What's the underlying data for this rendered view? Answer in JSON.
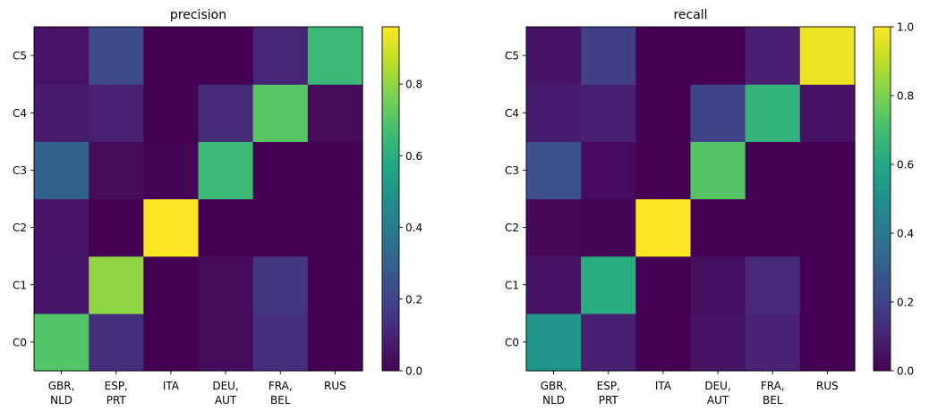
{
  "chart_data": [
    {
      "type": "heatmap",
      "title": "precision",
      "x_categories": [
        "GBR,\nNLD",
        "ESP,\nPRT",
        "ITA",
        "DEU,\nAUT",
        "FRA,\nBEL",
        "RUS"
      ],
      "y_categories": [
        "C0",
        "C1",
        "C2",
        "C3",
        "C4",
        "C5"
      ],
      "values": [
        [
          0.7,
          0.13,
          0.0,
          0.03,
          0.13,
          0.0
        ],
        [
          0.06,
          0.8,
          0.0,
          0.03,
          0.15,
          0.0
        ],
        [
          0.05,
          0.0,
          0.96,
          0.0,
          0.0,
          0.0
        ],
        [
          0.3,
          0.03,
          0.01,
          0.65,
          0.0,
          0.0
        ],
        [
          0.07,
          0.09,
          0.0,
          0.12,
          0.71,
          0.03
        ],
        [
          0.05,
          0.22,
          0.0,
          0.0,
          0.1,
          0.65
        ]
      ],
      "colorbar": {
        "min": 0.0,
        "max": 0.96,
        "ticks": [
          "0.0",
          "0.2",
          "0.4",
          "0.6",
          "0.8"
        ]
      },
      "colormap": "viridis"
    },
    {
      "type": "heatmap",
      "title": "recall",
      "x_categories": [
        "GBR,\nNLD",
        "ESP,\nPRT",
        "ITA",
        "DEU,\nAUT",
        "FRA,\nBEL",
        "RUS"
      ],
      "y_categories": [
        "C0",
        "C1",
        "C2",
        "C3",
        "C4",
        "C5"
      ],
      "values": [
        [
          0.52,
          0.09,
          0.0,
          0.05,
          0.1,
          0.0
        ],
        [
          0.05,
          0.62,
          0.0,
          0.04,
          0.12,
          0.0
        ],
        [
          0.02,
          0.01,
          1.0,
          0.0,
          0.0,
          0.0
        ],
        [
          0.25,
          0.03,
          0.0,
          0.73,
          0.0,
          0.0
        ],
        [
          0.08,
          0.09,
          0.0,
          0.2,
          0.65,
          0.05
        ],
        [
          0.05,
          0.19,
          0.0,
          0.0,
          0.09,
          0.97
        ]
      ],
      "colorbar": {
        "min": 0.0,
        "max": 1.0,
        "ticks": [
          "0.0",
          "0.2",
          "0.4",
          "0.6",
          "0.8",
          "1.0"
        ]
      },
      "colormap": "viridis"
    }
  ]
}
